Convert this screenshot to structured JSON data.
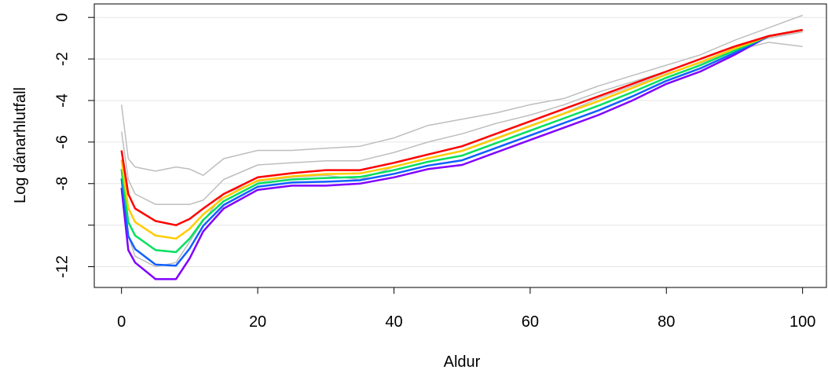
{
  "chart_data": {
    "type": "line",
    "x_label": "Aldur",
    "y_label": "Log dánarhlutfall",
    "x": [
      0,
      1,
      2,
      5,
      8,
      10,
      12,
      15,
      20,
      25,
      30,
      35,
      40,
      45,
      50,
      55,
      60,
      65,
      70,
      75,
      80,
      85,
      90,
      95,
      100
    ],
    "xlim": [
      -4,
      103.5
    ],
    "xticks": [
      0,
      20,
      40,
      60,
      80,
      100
    ],
    "ylim": [
      -13,
      0.65
    ],
    "yticks": [
      0,
      -2,
      -4,
      -6,
      -8,
      {
        "value": -10,
        "label": null
      },
      -12
    ],
    "grid": true,
    "series": [
      {
        "color": "#bebebe",
        "values": [
          -4.2,
          -6.8,
          -7.2,
          -7.4,
          -7.2,
          -7.3,
          -7.6,
          -6.8,
          -6.4,
          -6.4,
          -6.3,
          -6.2,
          -5.8,
          -5.2,
          -4.9,
          -4.6,
          -4.2,
          -3.9,
          -3.3,
          -2.8,
          -2.3,
          -1.8,
          -1.1,
          -0.5,
          0.1
        ]
      },
      {
        "color": "#bebebe",
        "values": [
          -5.5,
          -7.8,
          -8.5,
          -9,
          -9,
          -9,
          -8.8,
          -7.8,
          -7.1,
          -7.0,
          -6.9,
          -6.9,
          -6.5,
          -6.0,
          -5.6,
          -5.1,
          -4.7,
          -4.2,
          -3.6,
          -3.1,
          -2.6,
          -2.0,
          -1.4,
          -1.0,
          -0.7
        ]
      },
      {
        "color": "#bebebe",
        "values": [
          -7.5,
          -10.5,
          -11.5,
          -12.0,
          -11.8,
          -10.8,
          -9.8,
          -8.5,
          -7.9,
          -7.7,
          -7.6,
          -7.8,
          -7.2,
          -6.8,
          -6.4,
          -5.8,
          -5.2,
          -4.6,
          -3.9,
          -3.3,
          -2.7,
          -2.2,
          -1.6,
          -1.2,
          -1.4
        ]
      },
      {
        "color": "#8000ff",
        "values": [
          -8.2,
          -11.2,
          -11.8,
          -12.6,
          -12.6,
          -11.6,
          -10.3,
          -9.2,
          -8.3,
          -8.1,
          -8.1,
          -8.0,
          -7.7,
          -7.3,
          -7.1,
          -6.5,
          -5.9,
          -5.3,
          -4.7,
          -4.0,
          -3.2,
          -2.6,
          -1.8,
          -0.9,
          -0.6
        ]
      },
      {
        "color": "#1060ff",
        "values": [
          -7.75,
          -10.53,
          -11.15,
          -11.9,
          -11.95,
          -11.13,
          -10.03,
          -9.03,
          -8.15,
          -7.95,
          -7.91,
          -7.84,
          -7.53,
          -7.13,
          -6.88,
          -6.28,
          -5.68,
          -5.08,
          -4.48,
          -3.8,
          -3.05,
          -2.45,
          -1.7,
          -0.9,
          -0.6
        ]
      },
      {
        "color": "#00e060",
        "values": [
          -7.3,
          -9.85,
          -10.5,
          -11.2,
          -11.3,
          -10.65,
          -9.75,
          -8.85,
          -8.0,
          -7.8,
          -7.73,
          -7.68,
          -7.35,
          -6.95,
          -6.65,
          -6.05,
          -5.45,
          -4.85,
          -4.25,
          -3.6,
          -2.9,
          -2.3,
          -1.6,
          -0.9,
          -0.6
        ]
      },
      {
        "color": "#ffcc00",
        "values": [
          -6.85,
          -9.18,
          -9.85,
          -10.5,
          -10.65,
          -10.18,
          -9.48,
          -8.68,
          -7.85,
          -7.65,
          -7.54,
          -7.51,
          -7.18,
          -6.78,
          -6.43,
          -5.83,
          -5.23,
          -4.63,
          -4.03,
          -3.4,
          -2.75,
          -2.15,
          -1.5,
          -0.9,
          -0.6
        ]
      },
      {
        "color": "#ff0000",
        "values": [
          -6.4,
          -8.5,
          -9.2,
          -9.8,
          -10,
          -9.7,
          -9.2,
          -8.5,
          -7.7,
          -7.5,
          -7.35,
          -7.35,
          -7.0,
          -6.6,
          -6.2,
          -5.6,
          -5.0,
          -4.4,
          -3.8,
          -3.2,
          -2.6,
          -2.0,
          -1.4,
          -0.9,
          -0.6
        ]
      }
    ]
  }
}
